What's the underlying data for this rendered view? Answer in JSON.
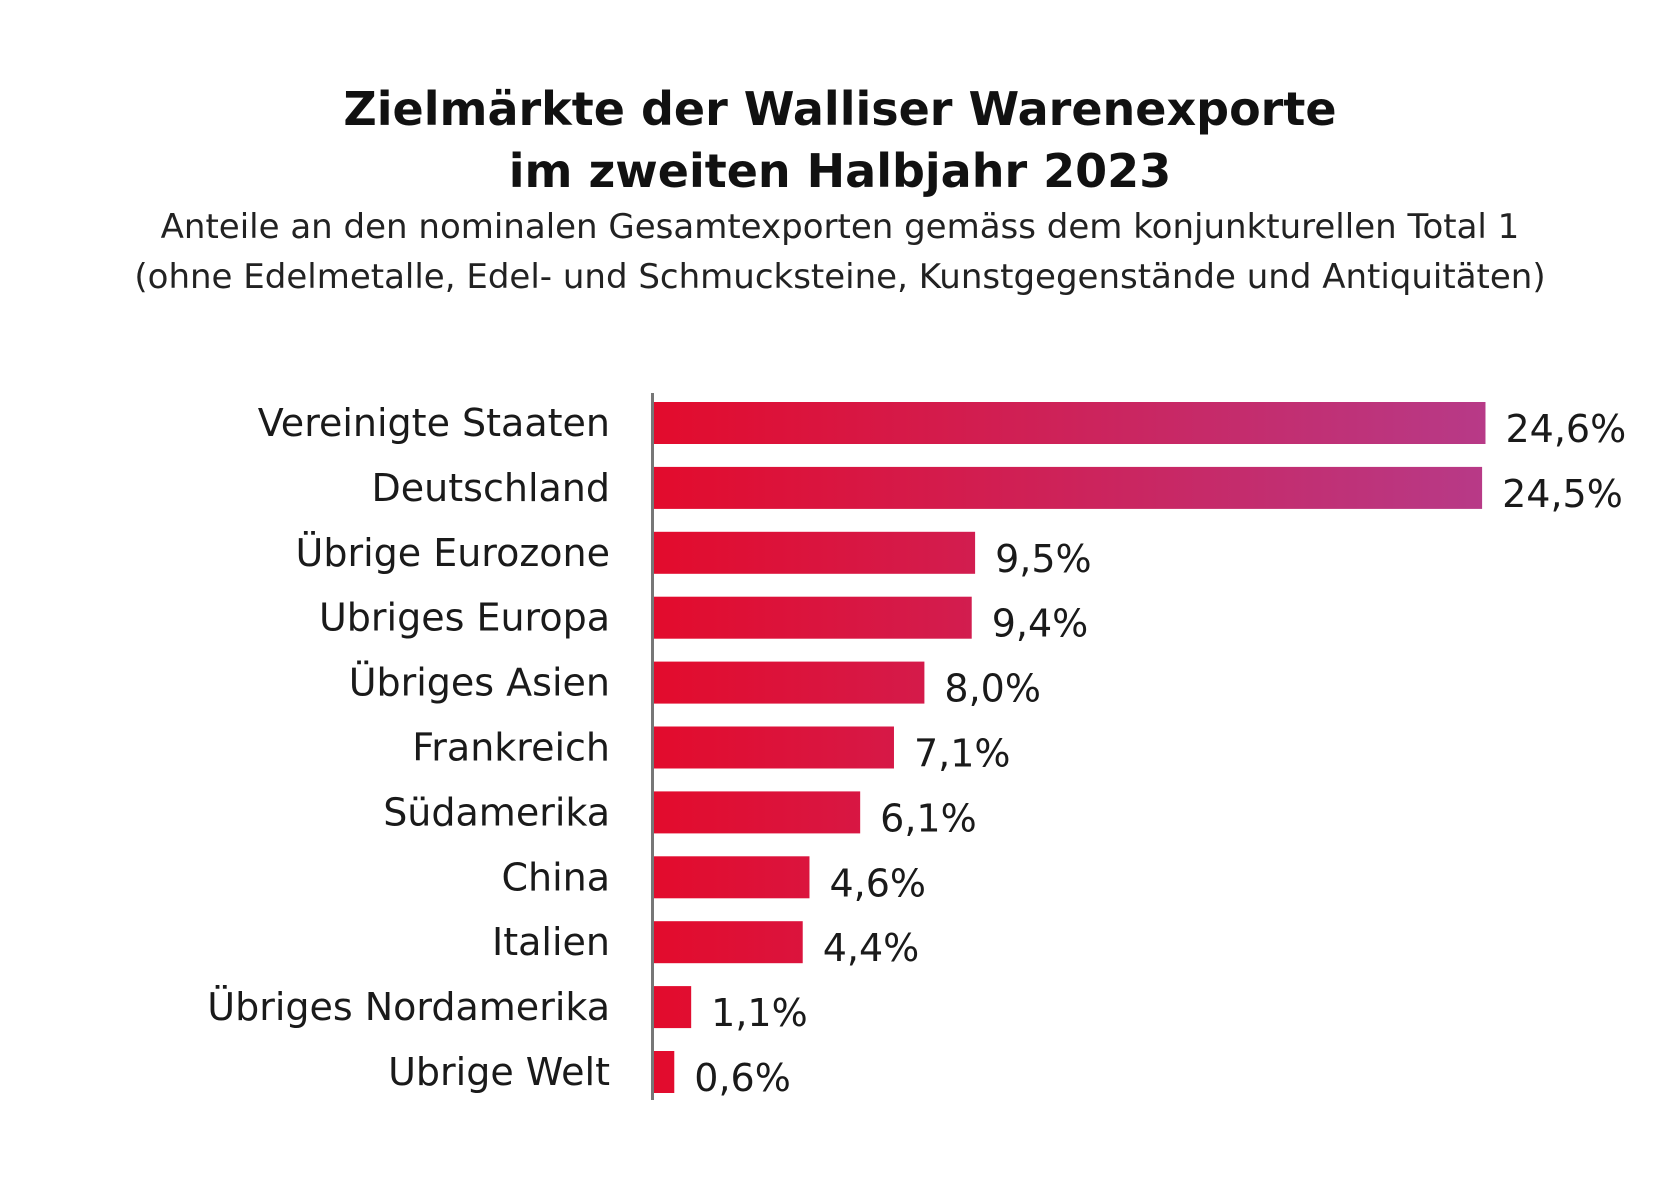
{
  "header": {
    "title_line1": "Zielmärkte der Walliser Warenexporte",
    "title_line2": "im zweiten Halbjahr 2023",
    "subtitle_line1": "Anteile an den nominalen Gesamtexporten gemäss dem konjunkturellen Total 1",
    "subtitle_line2": "(ohne Edelmetalle, Edel- und Schmucksteine, Kunstgegenstände und Antiquitäten)"
  },
  "chart_data": {
    "type": "bar",
    "orientation": "horizontal",
    "categories": [
      "Vereinigte Staaten",
      "Deutschland",
      "Übrige Eurozone",
      "Ubriges Europa",
      "Übriges Asien",
      "Frankreich",
      "Südamerika",
      "China",
      "Italien",
      "Übriges Nordamerika",
      "Ubrige Welt"
    ],
    "values": [
      24.6,
      24.5,
      9.5,
      9.4,
      8.0,
      7.1,
      6.1,
      4.6,
      4.4,
      1.1,
      0.6
    ],
    "value_labels": [
      "24,6%",
      "24,5%",
      "9,5%",
      "9,4%",
      "8,0%",
      "7,1%",
      "6,1%",
      "4,6%",
      "4,4%",
      "1,1%",
      "0,6%"
    ],
    "xlim": [
      0,
      25
    ],
    "grid": false,
    "colors": {
      "bar_start": "#e30b2c",
      "bar_end": "#b73a88",
      "axis": "#777777"
    }
  }
}
